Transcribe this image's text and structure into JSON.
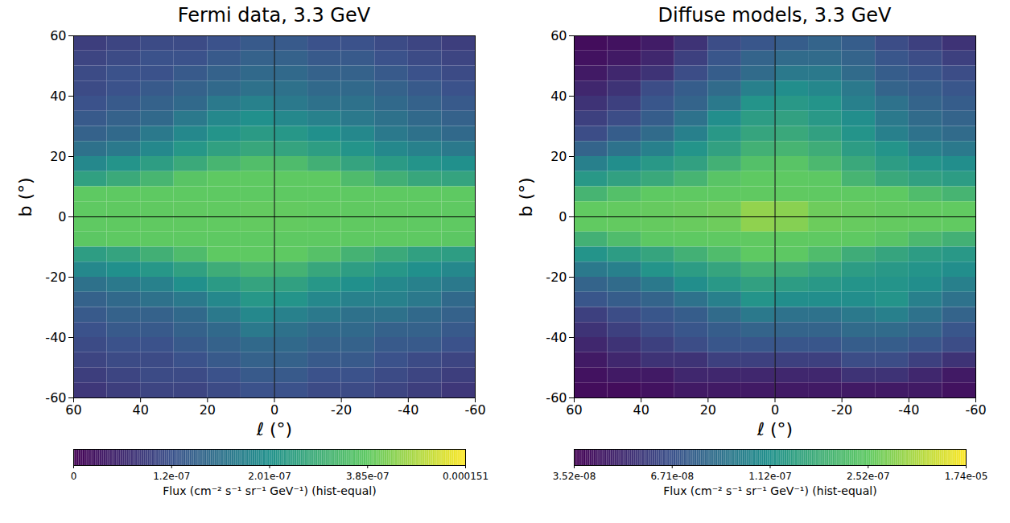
{
  "chart_data": [
    {
      "type": "heatmap",
      "title": "Fermi data, 3.3 GeV",
      "xlabel": "ℓ (°)",
      "ylabel": "b (°)",
      "xlim": [
        60,
        -60
      ],
      "ylim": [
        -60,
        60
      ],
      "xticks": [
        60,
        40,
        20,
        0,
        -20,
        -40,
        -60
      ],
      "yticks": [
        -60,
        -40,
        -20,
        0,
        20,
        40,
        60
      ],
      "vlines": [
        0
      ],
      "hlines": [
        0
      ],
      "l_edges": [
        60,
        50,
        40,
        30,
        20,
        10,
        0,
        -10,
        -20,
        -30,
        -40,
        -50,
        -60
      ],
      "b_edges": [
        60,
        55,
        50,
        45,
        40,
        35,
        30,
        25,
        20,
        15,
        10,
        5,
        0,
        -5,
        -10,
        -15,
        -20,
        -25,
        -30,
        -35,
        -40,
        -45,
        -50,
        -55,
        -60
      ],
      "cells": [
        [
          9e-08,
          1e-07,
          1.1e-07,
          1.1e-07,
          1.2e-07,
          1.3e-07,
          1.3e-07,
          1.2e-07,
          1.2e-07,
          1.1e-07,
          1e-07,
          9e-08
        ],
        [
          1e-07,
          1.1e-07,
          1.2e-07,
          1.2e-07,
          1.3e-07,
          1.4e-07,
          1.4e-07,
          1.3e-07,
          1.3e-07,
          1.2e-07,
          1.1e-07,
          1e-07
        ],
        [
          1.1e-07,
          1.2e-07,
          1.2e-07,
          1.3e-07,
          1.4e-07,
          1.5e-07,
          1.5e-07,
          1.4e-07,
          1.4e-07,
          1.3e-07,
          1.2e-07,
          1.1e-07
        ],
        [
          1.1e-07,
          1.2e-07,
          1.3e-07,
          1.4e-07,
          1.5e-07,
          1.6e-07,
          1.6e-07,
          1.5e-07,
          1.5e-07,
          1.4e-07,
          1.3e-07,
          1.2e-07
        ],
        [
          1.2e-07,
          1.3e-07,
          1.4e-07,
          1.5e-07,
          1.7e-07,
          1.8e-07,
          1.7e-07,
          1.6e-07,
          1.6e-07,
          1.5e-07,
          1.4e-07,
          1.3e-07
        ],
        [
          1.3e-07,
          1.4e-07,
          1.5e-07,
          1.7e-07,
          1.9e-07,
          2e-07,
          1.9e-07,
          1.8e-07,
          1.7e-07,
          1.6e-07,
          1.5e-07,
          1.4e-07
        ],
        [
          1.4e-07,
          1.5e-07,
          1.7e-07,
          1.9e-07,
          2.1e-07,
          2.3e-07,
          2.2e-07,
          2e-07,
          1.9e-07,
          1.7e-07,
          1.6e-07,
          1.5e-07
        ],
        [
          1.6e-07,
          1.7e-07,
          1.9e-07,
          2.2e-07,
          2.5e-07,
          2.7e-07,
          2.6e-07,
          2.4e-07,
          2.1e-07,
          1.9e-07,
          1.8e-07,
          1.7e-07
        ],
        [
          1.9e-07,
          2.1e-07,
          2.4e-07,
          2.8e-07,
          3.2e-07,
          3.5e-07,
          3.4e-07,
          3e-07,
          2.6e-07,
          2.3e-07,
          2.1e-07,
          2e-07
        ],
        [
          2.5e-07,
          2.8e-07,
          3.2e-07,
          3.7e-07,
          4.2e-07,
          4.6e-07,
          4.4e-07,
          3.9e-07,
          3.4e-07,
          3e-07,
          2.7e-07,
          2.6e-07
        ],
        [
          4e-07,
          4.5e-07,
          5.2e-07,
          6e-07,
          7e-07,
          8e-07,
          7.6e-07,
          6.6e-07,
          5.6e-07,
          4.8e-07,
          4.2e-07,
          4e-07
        ],
        [
          1.5e-06,
          1.8e-06,
          2.2e-06,
          2.8e-06,
          3.5e-06,
          6e-06,
          5.5e-06,
          3.2e-06,
          2.5e-06,
          2e-06,
          1.7e-06,
          1.5e-06
        ],
        [
          1.4e-06,
          1.7e-06,
          2.1e-06,
          2.6e-06,
          3.3e-06,
          5.5e-06,
          5e-06,
          3e-06,
          2.3e-06,
          1.9e-06,
          1.6e-06,
          1.4e-06
        ],
        [
          3.8e-07,
          4.3e-07,
          5e-07,
          5.7e-07,
          6.6e-07,
          7.5e-07,
          7.2e-07,
          6.2e-07,
          5.3e-07,
          4.6e-07,
          4e-07,
          3.8e-07
        ],
        [
          2.4e-07,
          2.6e-07,
          3e-07,
          3.4e-07,
          3.9e-07,
          4.3e-07,
          4.1e-07,
          3.6e-07,
          3.1e-07,
          2.8e-07,
          2.5e-07,
          2.4e-07
        ],
        [
          1.9e-07,
          2e-07,
          2.2e-07,
          2.5e-07,
          2.9e-07,
          3.2e-07,
          3.1e-07,
          2.7e-07,
          2.4e-07,
          2.2e-07,
          2e-07,
          1.9e-07
        ],
        [
          1.6e-07,
          1.7e-07,
          1.8e-07,
          2e-07,
          2.3e-07,
          2.6e-07,
          2.5e-07,
          2.2e-07,
          2e-07,
          1.9e-07,
          1.8e-07,
          1.7e-07
        ],
        [
          1.4e-07,
          1.5e-07,
          1.6e-07,
          1.7e-07,
          1.9e-07,
          2.2e-07,
          2.1e-07,
          1.9e-07,
          1.8e-07,
          1.8e-07,
          1.7e-07,
          1.5e-07
        ],
        [
          1.3e-07,
          1.4e-07,
          1.4e-07,
          1.5e-07,
          1.7e-07,
          1.9e-07,
          1.8e-07,
          1.7e-07,
          1.6e-07,
          1.6e-07,
          1.5e-07,
          1.4e-07
        ],
        [
          1.2e-07,
          1.3e-07,
          1.3e-07,
          1.4e-07,
          1.5e-07,
          1.7e-07,
          1.6e-07,
          1.5e-07,
          1.5e-07,
          1.4e-07,
          1.4e-07,
          1.3e-07
        ],
        [
          1.1e-07,
          1.2e-07,
          1.2e-07,
          1.3e-07,
          1.4e-07,
          1.5e-07,
          1.5e-07,
          1.4e-07,
          1.4e-07,
          1.3e-07,
          1.3e-07,
          1.2e-07
        ],
        [
          1e-07,
          1.1e-07,
          1.1e-07,
          1.2e-07,
          1.3e-07,
          1.4e-07,
          1.4e-07,
          1.3e-07,
          1.3e-07,
          1.2e-07,
          1.1e-07,
          1e-07
        ],
        [
          9e-08,
          1e-07,
          1.1e-07,
          1.1e-07,
          1.2e-07,
          1.3e-07,
          1.3e-07,
          1.2e-07,
          1.2e-07,
          1.1e-07,
          1e-07,
          9e-08
        ],
        [
          8e-08,
          9e-08,
          1e-07,
          1e-07,
          1.1e-07,
          1.2e-07,
          1.2e-07,
          1.1e-07,
          1.1e-07,
          1e-07,
          9e-08,
          8e-08
        ]
      ],
      "colorbar": {
        "label": "Flux (cm⁻² s⁻¹ sr⁻¹ GeV⁻¹) (hist-equal)",
        "range": [
          0,
          0.000151
        ],
        "ticks": [
          0,
          {
            "value": 1.2e-07,
            "label": "1.2e-07"
          },
          {
            "value": 2.01e-07,
            "label": "2.01e-07"
          },
          {
            "value": 3.85e-07,
            "label": "3.85e-07"
          },
          0.000151
        ]
      }
    },
    {
      "type": "heatmap",
      "title": "Diffuse models, 3.3 GeV",
      "xlabel": "ℓ (°)",
      "ylabel": "b (°)",
      "xlim": [
        60,
        -60
      ],
      "ylim": [
        -60,
        60
      ],
      "xticks": [
        60,
        40,
        20,
        0,
        -20,
        -40,
        -60
      ],
      "yticks": [
        -60,
        -40,
        -20,
        0,
        20,
        40,
        60
      ],
      "vlines": [
        0
      ],
      "hlines": [
        0
      ],
      "l_edges": [
        60,
        50,
        40,
        30,
        20,
        10,
        0,
        -10,
        -20,
        -30,
        -40,
        -50,
        -60
      ],
      "b_edges": [
        60,
        55,
        50,
        45,
        40,
        35,
        30,
        25,
        20,
        15,
        10,
        5,
        0,
        -5,
        -10,
        -15,
        -20,
        -25,
        -30,
        -35,
        -40,
        -45,
        -50,
        -55,
        -60
      ],
      "cells": [
        [
          4e-08,
          4.2e-08,
          4.6e-08,
          5.5e-08,
          6.5e-08,
          7e-08,
          7.5e-08,
          8e-08,
          7.5e-08,
          6.5e-08,
          6e-08,
          5.5e-08
        ],
        [
          4.2e-08,
          4.5e-08,
          5e-08,
          6e-08,
          7e-08,
          8e-08,
          8.5e-08,
          8.5e-08,
          8e-08,
          7e-08,
          6.5e-08,
          6e-08
        ],
        [
          4.5e-08,
          5e-08,
          5.5e-08,
          6.5e-08,
          7.5e-08,
          8.5e-08,
          9.5e-08,
          9.5e-08,
          8.5e-08,
          7.5e-08,
          7e-08,
          6.5e-08
        ],
        [
          5e-08,
          5.5e-08,
          6.5e-08,
          7.5e-08,
          8.5e-08,
          1e-07,
          1.1e-07,
          1.05e-07,
          9.5e-08,
          8e-08,
          7.5e-08,
          7e-08
        ],
        [
          5.5e-08,
          6e-08,
          7e-08,
          8e-08,
          9.5e-08,
          1.2e-07,
          1.3e-07,
          1.2e-07,
          1e-07,
          9e-08,
          8e-08,
          7.5e-08
        ],
        [
          6e-08,
          6.5e-08,
          7.5e-08,
          9e-08,
          1.1e-07,
          1.4e-07,
          1.5e-07,
          1.3e-07,
          1.1e-07,
          9.5e-08,
          8.5e-08,
          8e-08
        ],
        [
          6.5e-08,
          7.5e-08,
          8.5e-08,
          1e-07,
          1.3e-07,
          1.6e-07,
          1.7e-07,
          1.5e-07,
          1.2e-07,
          1e-07,
          9e-08,
          8.5e-08
        ],
        [
          8e-08,
          9e-08,
          1e-07,
          1.2e-07,
          1.5e-07,
          1.9e-07,
          2e-07,
          1.8e-07,
          1.4e-07,
          1.2e-07,
          1e-07,
          9.5e-08
        ],
        [
          1e-07,
          1.1e-07,
          1.3e-07,
          1.5e-07,
          1.9e-07,
          2.3e-07,
          2.4e-07,
          2.1e-07,
          1.7e-07,
          1.4e-07,
          1.2e-07,
          1.1e-07
        ],
        [
          1.3e-07,
          1.5e-07,
          1.7e-07,
          2e-07,
          2.4e-07,
          2.9e-07,
          2.8e-07,
          2.5e-07,
          2e-07,
          1.7e-07,
          1.5e-07,
          1.4e-07
        ],
        [
          2e-07,
          2.3e-07,
          2.7e-07,
          3.2e-07,
          3.8e-07,
          4.5e-07,
          4.4e-07,
          3.8e-07,
          3.1e-07,
          2.6e-07,
          2.2e-07,
          2e-07
        ],
        [
          6e-07,
          8e-07,
          1.1e-06,
          1.5e-06,
          2.2e-06,
          6e-06,
          5e-06,
          2e-06,
          1.3e-06,
          9e-07,
          7e-07,
          6e-07
        ],
        [
          5.5e-07,
          7.5e-07,
          1e-06,
          1.4e-06,
          2e-06,
          5.5e-06,
          4.5e-06,
          1.8e-06,
          1.2e-06,
          8.5e-07,
          6.5e-07,
          5.5e-07
        ],
        [
          1.9e-07,
          2.2e-07,
          2.5e-07,
          3e-07,
          3.6e-07,
          4.2e-07,
          4.1e-07,
          3.5e-07,
          2.9e-07,
          2.4e-07,
          2.1e-07,
          1.9e-07
        ],
        [
          1.2e-07,
          1.4e-07,
          1.6e-07,
          1.9e-07,
          2.2e-07,
          2.6e-07,
          2.5e-07,
          2.2e-07,
          1.8e-07,
          1.6e-07,
          1.4e-07,
          1.3e-07
        ],
        [
          9.5e-08,
          1e-07,
          1.2e-07,
          1.4e-07,
          1.6e-07,
          1.9e-07,
          1.8e-07,
          1.6e-07,
          1.4e-07,
          1.3e-07,
          1.2e-07,
          1.1e-07
        ],
        [
          8e-08,
          8.5e-08,
          9.5e-08,
          1.1e-07,
          1.3e-07,
          1.5e-07,
          1.4e-07,
          1.3e-07,
          1.2e-07,
          1.2e-07,
          1.1e-07,
          1e-07
        ],
        [
          7e-08,
          7.5e-08,
          8e-08,
          9e-08,
          1e-07,
          1.2e-07,
          1.1e-07,
          1.1e-07,
          1.1e-07,
          1.2e-07,
          1e-07,
          9e-08
        ],
        [
          6e-08,
          6.5e-08,
          7e-08,
          7.5e-08,
          8.5e-08,
          9.5e-08,
          9e-08,
          9e-08,
          9.5e-08,
          1e-07,
          9e-08,
          8e-08
        ],
        [
          5.5e-08,
          6e-08,
          6.5e-08,
          7e-08,
          7.5e-08,
          8e-08,
          8e-08,
          8e-08,
          8.5e-08,
          8.5e-08,
          8e-08,
          7e-08
        ],
        [
          5e-08,
          5.5e-08,
          6e-08,
          6.5e-08,
          7e-08,
          7e-08,
          7e-08,
          7e-08,
          7.5e-08,
          7.5e-08,
          7e-08,
          6.5e-08
        ],
        [
          4.5e-08,
          5e-08,
          5.5e-08,
          5.5e-08,
          6e-08,
          6e-08,
          6e-08,
          6e-08,
          6.5e-08,
          6.5e-08,
          6e-08,
          5.5e-08
        ],
        [
          4.2e-08,
          4.5e-08,
          4.5e-08,
          5e-08,
          5e-08,
          5e-08,
          5e-08,
          5e-08,
          5.5e-08,
          5.5e-08,
          5e-08,
          4.5e-08
        ],
        [
          4e-08,
          4e-08,
          4.2e-08,
          4.5e-08,
          4.5e-08,
          4.5e-08,
          4.5e-08,
          4.5e-08,
          4.5e-08,
          4.5e-08,
          4.5e-08,
          4.2e-08
        ]
      ],
      "colorbar": {
        "label": "Flux (cm⁻² s⁻¹ sr⁻¹ GeV⁻¹) (hist-equal)",
        "range": [
          3.52e-08,
          1.74e-05
        ],
        "ticks": [
          {
            "value": 3.52e-08,
            "label": "3.52e-08"
          },
          {
            "value": 6.71e-08,
            "label": "6.71e-08"
          },
          {
            "value": 1.12e-07,
            "label": "1.12e-07"
          },
          {
            "value": 2.52e-07,
            "label": "2.52e-07"
          },
          {
            "value": 1.74e-05,
            "label": "1.74e-05"
          }
        ]
      }
    }
  ]
}
